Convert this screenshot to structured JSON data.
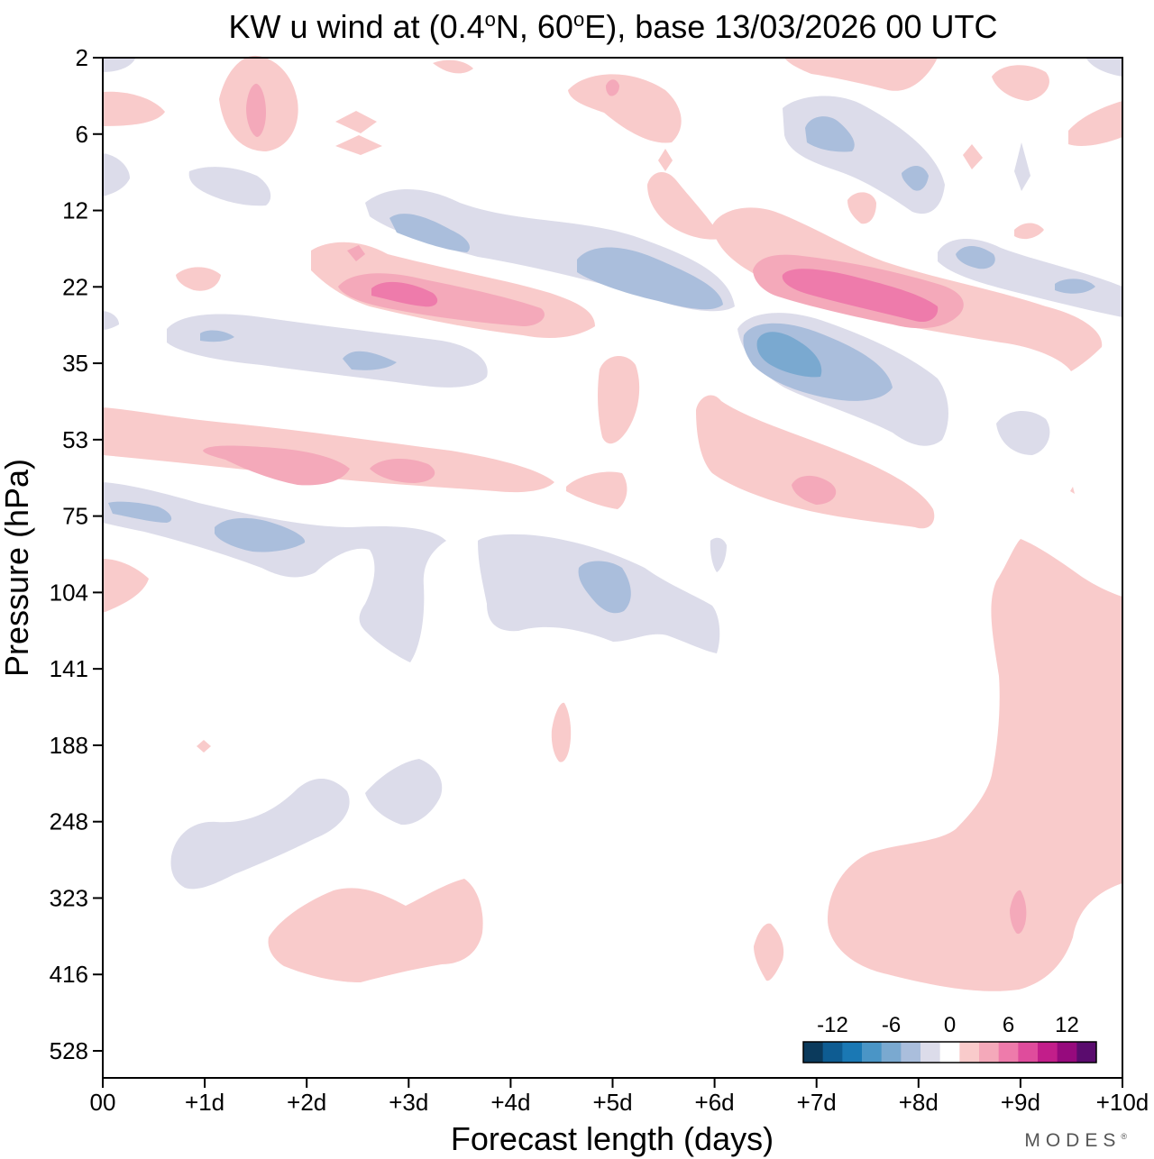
{
  "title": {
    "prefix": "KW u wind at (0.4",
    "deg1": "o",
    "mid": "N, 60",
    "deg2": "o",
    "suffix": "E),  base 13/03/2026  00 UTC"
  },
  "watermark": {
    "text": "MODES",
    "mark": "®"
  },
  "chart_data": {
    "type": "heatmap",
    "xlabel": "Forecast length (days)",
    "ylabel": "Pressure (hPa)",
    "xlim": [
      0,
      10
    ],
    "x_ticks": [
      {
        "value": 0,
        "label": "00"
      },
      {
        "value": 1,
        "label": "+1d"
      },
      {
        "value": 2,
        "label": "+2d"
      },
      {
        "value": 3,
        "label": "+3d"
      },
      {
        "value": 4,
        "label": "+4d"
      },
      {
        "value": 5,
        "label": "+5d"
      },
      {
        "value": 6,
        "label": "+6d"
      },
      {
        "value": 7,
        "label": "+7d"
      },
      {
        "value": 8,
        "label": "+8d"
      },
      {
        "value": 9,
        "label": "+9d"
      },
      {
        "value": 10,
        "label": "+10d"
      }
    ],
    "y_scale": "log-pressure, inverted",
    "y_ticks": [
      {
        "value": 2,
        "label": "2"
      },
      {
        "value": 6,
        "label": "6"
      },
      {
        "value": 12,
        "label": "12"
      },
      {
        "value": 22,
        "label": "22"
      },
      {
        "value": 35,
        "label": "35"
      },
      {
        "value": 53,
        "label": "53"
      },
      {
        "value": 75,
        "label": "75"
      },
      {
        "value": 104,
        "label": "104"
      },
      {
        "value": 141,
        "label": "141"
      },
      {
        "value": 188,
        "label": "188"
      },
      {
        "value": 248,
        "label": "248"
      },
      {
        "value": 323,
        "label": "323"
      },
      {
        "value": 416,
        "label": "416"
      },
      {
        "value": 528,
        "label": "528"
      }
    ],
    "colorbar": {
      "placement": "bottom-right",
      "labels": [
        "-12",
        "-6",
        "0",
        "6",
        "12"
      ],
      "levels": [
        -16,
        -14,
        -12,
        -10,
        -8,
        -6,
        -4,
        -2,
        2,
        4,
        6,
        8,
        10,
        12,
        14,
        16
      ],
      "colors": [
        "#0b3a5c",
        "#0e5c92",
        "#1a78b4",
        "#4a95c6",
        "#7aa9d0",
        "#aabedc",
        "#dcdcea",
        "#ffffff",
        "#f9cbcb",
        "#f4a9ba",
        "#ee7bab",
        "#df4c9c",
        "#c21e8a",
        "#960a7d",
        "#5a0c6e"
      ]
    },
    "features": [
      {
        "sign": "+",
        "level": 2,
        "x": [
          1.0,
          1.9
        ],
        "p": [
          2,
          6
        ]
      },
      {
        "sign": "+",
        "level": 4,
        "x": [
          1.4,
          1.6
        ],
        "p": [
          3,
          6
        ]
      },
      {
        "sign": "+",
        "level": 2,
        "x": [
          0.0,
          0.6
        ],
        "p": [
          4,
          6
        ]
      },
      {
        "sign": "+",
        "level": 2,
        "x": [
          4.6,
          5.6
        ],
        "p": [
          2,
          7
        ]
      },
      {
        "sign": "+",
        "level": 2,
        "x": [
          6.8,
          8.1
        ],
        "p": [
          2,
          3
        ]
      },
      {
        "sign": "+",
        "level": 2,
        "x": [
          8.9,
          9.4
        ],
        "p": [
          2,
          4
        ]
      },
      {
        "sign": "+",
        "level": 2,
        "x": [
          9.3,
          10.0
        ],
        "p": [
          4,
          7
        ]
      },
      {
        "sign": "-",
        "level": 2,
        "x": [
          6.7,
          8.2
        ],
        "p": [
          4,
          12
        ]
      },
      {
        "sign": "-",
        "level": 4,
        "x": [
          6.9,
          7.4
        ],
        "p": [
          5,
          8
        ]
      },
      {
        "sign": "-",
        "level": 4,
        "x": [
          7.8,
          8.1
        ],
        "p": [
          8,
          11
        ]
      },
      {
        "sign": "-",
        "level": 2,
        "x": [
          1.0,
          2.0
        ],
        "p": [
          9,
          12
        ]
      },
      {
        "sign": "-",
        "level": 2,
        "x": [
          2.6,
          6.9
        ],
        "p": [
          10,
          35
        ]
      },
      {
        "sign": "-",
        "level": 4,
        "x": [
          2.9,
          3.7
        ],
        "p": [
          13,
          18
        ]
      },
      {
        "sign": "-",
        "level": 4,
        "x": [
          4.6,
          6.1
        ],
        "p": [
          18,
          27
        ]
      },
      {
        "sign": "-",
        "level": 4,
        "x": [
          6.2,
          7.7
        ],
        "p": [
          28,
          45
        ]
      },
      {
        "sign": "-",
        "level": 6,
        "x": [
          6.4,
          7.0
        ],
        "p": [
          31,
          40
        ]
      },
      {
        "sign": "+",
        "level": 2,
        "x": [
          2.1,
          4.8
        ],
        "p": [
          15,
          35
        ]
      },
      {
        "sign": "+",
        "level": 4,
        "x": [
          2.8,
          4.4
        ],
        "p": [
          20,
          31
        ]
      },
      {
        "sign": "+",
        "level": 6,
        "x": [
          2.8,
          3.3
        ],
        "p": [
          21,
          26
        ]
      },
      {
        "sign": "+",
        "level": 2,
        "x": [
          5.9,
          9.8
        ],
        "p": [
          14,
          40
        ]
      },
      {
        "sign": "+",
        "level": 4,
        "x": [
          6.4,
          8.4
        ],
        "p": [
          18,
          30
        ]
      },
      {
        "sign": "+",
        "level": 6,
        "x": [
          6.5,
          8.2
        ],
        "p": [
          20,
          29
        ]
      },
      {
        "sign": "-",
        "level": 2,
        "x": [
          8.2,
          10.0
        ],
        "p": [
          16,
          27
        ]
      },
      {
        "sign": "-",
        "level": 2,
        "x": [
          0.6,
          3.8
        ],
        "p": [
          28,
          40
        ]
      },
      {
        "sign": "-",
        "level": 4,
        "x": [
          2.3,
          2.8
        ],
        "p": [
          34,
          38
        ]
      },
      {
        "sign": "+",
        "level": 2,
        "x": [
          0.0,
          4.7
        ],
        "p": [
          48,
          70
        ]
      },
      {
        "sign": "+",
        "level": 4,
        "x": [
          1.0,
          3.1
        ],
        "p": [
          55,
          65
        ]
      },
      {
        "sign": "+",
        "level": 2,
        "x": [
          5.9,
          8.1
        ],
        "p": [
          45,
          85
        ]
      },
      {
        "sign": "+",
        "level": 4,
        "x": [
          6.8,
          7.2
        ],
        "p": [
          63,
          72
        ]
      },
      {
        "sign": "-",
        "level": 2,
        "x": [
          0.0,
          3.4
        ],
        "p": [
          70,
          130
        ]
      },
      {
        "sign": "-",
        "level": 4,
        "x": [
          0.0,
          2.0
        ],
        "p": [
          72,
          90
        ]
      },
      {
        "sign": "-",
        "level": 2,
        "x": [
          3.7,
          6.1
        ],
        "p": [
          85,
          140
        ]
      },
      {
        "sign": "-",
        "level": 4,
        "x": [
          4.6,
          5.1
        ],
        "p": [
          95,
          120
        ]
      },
      {
        "sign": "+",
        "level": 2,
        "x": [
          0.0,
          0.5
        ],
        "p": [
          95,
          115
        ]
      },
      {
        "sign": "+",
        "level": 2,
        "x": [
          4.4,
          4.6
        ],
        "p": [
          170,
          210
        ]
      },
      {
        "sign": "-",
        "level": 2,
        "x": [
          0.7,
          3.3
        ],
        "p": [
          215,
          340
        ]
      },
      {
        "sign": "+",
        "level": 2,
        "x": [
          1.6,
          3.7
        ],
        "p": [
          320,
          450
        ]
      },
      {
        "sign": "+",
        "level": 2,
        "x": [
          6.4,
          6.7
        ],
        "p": [
          360,
          440
        ]
      },
      {
        "sign": "+",
        "level": 2,
        "x": [
          7.2,
          10.0
        ],
        "p": [
          85,
          470
        ]
      },
      {
        "sign": "+",
        "level": 4,
        "x": [
          8.9,
          9.1
        ],
        "p": [
          310,
          370
        ]
      }
    ]
  }
}
